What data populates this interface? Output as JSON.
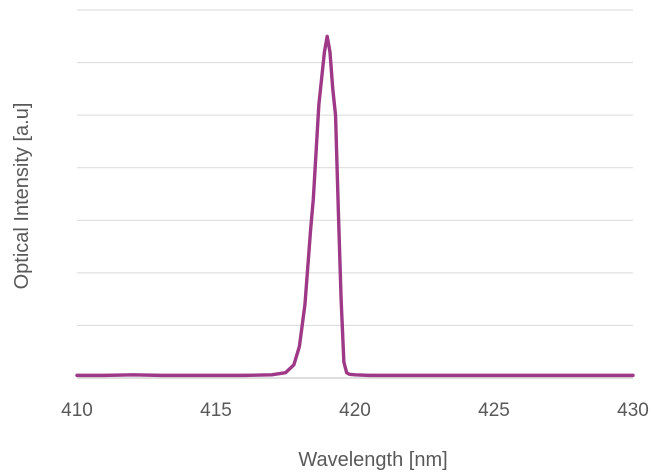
{
  "chart_data": {
    "type": "line",
    "xlabel": "Wavelength [nm]",
    "ylabel": "Optical Intensity [a.u]",
    "xlim": [
      410,
      430
    ],
    "ylim": [
      0,
      7
    ],
    "xticks": [
      410,
      415,
      420,
      425,
      430
    ],
    "yticks_labeled": false,
    "grid": true,
    "legend": "none",
    "colors": {
      "series": "#9e3987",
      "grid": "#d9d9d9",
      "text": "#595959"
    },
    "series": [
      {
        "x": [
          410,
          411,
          412,
          413,
          414,
          415,
          416,
          417,
          417.5,
          417.8,
          418.0,
          418.2,
          418.4,
          418.5,
          418.7,
          418.9,
          419.0,
          419.1,
          419.2,
          419.3,
          419.4,
          419.5,
          419.6,
          419.7,
          419.8,
          420.0,
          420.5,
          421,
          422,
          423,
          424,
          425,
          426,
          427,
          428,
          429,
          430
        ],
        "y": [
          0.05,
          0.05,
          0.06,
          0.05,
          0.05,
          0.05,
          0.05,
          0.06,
          0.1,
          0.25,
          0.6,
          1.4,
          2.8,
          3.4,
          5.2,
          6.2,
          6.5,
          6.2,
          5.5,
          5.0,
          3.2,
          1.5,
          0.3,
          0.1,
          0.07,
          0.06,
          0.05,
          0.05,
          0.05,
          0.05,
          0.05,
          0.05,
          0.05,
          0.05,
          0.05,
          0.05,
          0.05
        ]
      }
    ]
  }
}
